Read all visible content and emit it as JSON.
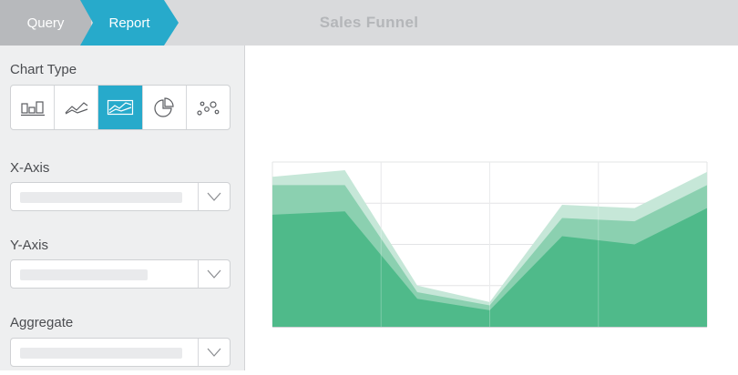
{
  "header": {
    "breadcrumbs": [
      {
        "label": "Query",
        "active": false
      },
      {
        "label": "Report",
        "active": true
      }
    ],
    "title": "Sales Funnel"
  },
  "sidebar": {
    "chart_type_label": "Chart Type",
    "chart_types": [
      {
        "icon": "bar-chart-icon",
        "active": false
      },
      {
        "icon": "line-chart-icon",
        "active": false
      },
      {
        "icon": "area-chart-icon",
        "active": true
      },
      {
        "icon": "pie-chart-icon",
        "active": false
      },
      {
        "icon": "scatter-chart-icon",
        "active": false
      }
    ],
    "x_axis_label": "X-Axis",
    "y_axis_label": "Y-Axis",
    "aggregate_label": "Aggregate"
  },
  "colors": {
    "accent": "#27aacb",
    "area_light": "#c6e7d8",
    "area_mid": "#8bd0b0",
    "area_dark": "#4fba8a",
    "grid": "#e3e4e6"
  },
  "chart_data": {
    "type": "area",
    "stacked": true,
    "grid": true,
    "x": [
      0,
      1,
      2,
      3,
      4,
      5,
      6
    ],
    "ylim": [
      0,
      100
    ],
    "series": [
      {
        "values": [
          68,
          70,
          17,
          10,
          55,
          50,
          72
        ]
      },
      {
        "values": [
          18,
          16,
          4,
          3,
          11,
          14,
          14
        ]
      },
      {
        "values": [
          5,
          9,
          4,
          2,
          8,
          8,
          8
        ]
      }
    ]
  }
}
